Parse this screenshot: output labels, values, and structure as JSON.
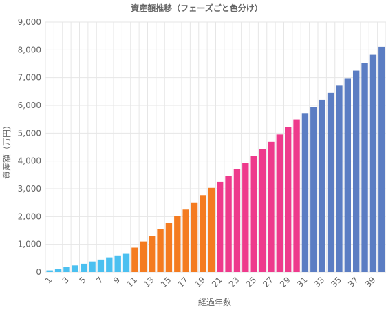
{
  "chart_data": {
    "type": "bar",
    "title": "資産額推移（フェーズごと色分け）",
    "xlabel": "経過年数",
    "ylabel": "資産額（万円）",
    "ylim": [
      0,
      9000
    ],
    "y_ticks": [
      "0",
      "1,000",
      "2,000",
      "3,000",
      "4,000",
      "5,000",
      "6,000",
      "7,000",
      "8,000",
      "9,000"
    ],
    "y_tick_values": [
      0,
      1000,
      2000,
      3000,
      4000,
      5000,
      6000,
      7000,
      8000,
      9000
    ],
    "x_tick_labels": [
      "1",
      "3",
      "5",
      "7",
      "9",
      "11",
      "13",
      "15",
      "17",
      "19",
      "21",
      "23",
      "25",
      "27",
      "29",
      "31",
      "33",
      "35",
      "37",
      "39"
    ],
    "grid": true,
    "legend": "none",
    "categories": [
      1,
      2,
      3,
      4,
      5,
      6,
      7,
      8,
      9,
      10,
      11,
      12,
      13,
      14,
      15,
      16,
      17,
      18,
      19,
      20,
      21,
      22,
      23,
      24,
      25,
      26,
      27,
      28,
      29,
      30,
      31,
      32,
      33,
      34,
      35,
      36,
      37,
      38,
      39,
      40
    ],
    "values": [
      60,
      120,
      180,
      240,
      300,
      380,
      450,
      530,
      600,
      680,
      880,
      1100,
      1310,
      1540,
      1770,
      2010,
      2250,
      2510,
      2770,
      3030,
      3250,
      3470,
      3700,
      3940,
      4180,
      4430,
      4690,
      4950,
      5220,
      5490,
      5720,
      5950,
      6200,
      6450,
      6710,
      6980,
      7250,
      7530,
      7820,
      8110
    ],
    "phase_colors": [
      "#4bc0f0",
      "#f47b20",
      "#ee3a8c",
      "#5b7dc3"
    ],
    "phase_of_bar": [
      0,
      0,
      0,
      0,
      0,
      0,
      0,
      0,
      0,
      0,
      1,
      1,
      1,
      1,
      1,
      1,
      1,
      1,
      1,
      1,
      2,
      2,
      2,
      2,
      2,
      2,
      2,
      2,
      2,
      2,
      3,
      3,
      3,
      3,
      3,
      3,
      3,
      3,
      3,
      3
    ]
  }
}
